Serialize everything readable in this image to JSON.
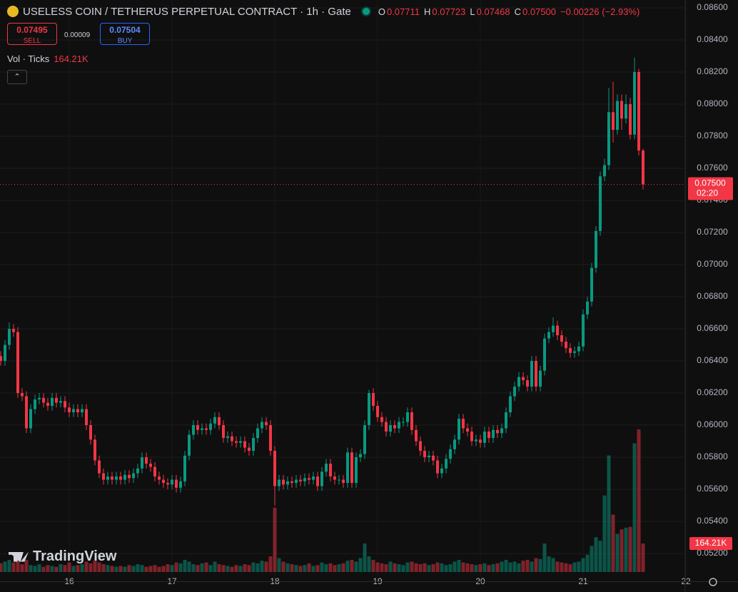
{
  "header": {
    "title": "USELESS COIN / TETHERUS PERPETUAL CONTRACT · 1h · Gate",
    "ohlc": [
      {
        "key": "O",
        "value": "0.07711"
      },
      {
        "key": "H",
        "value": "0.07723"
      },
      {
        "key": "L",
        "value": "0.07468"
      },
      {
        "key": "C",
        "value": "0.07500"
      }
    ],
    "change": "−0.00226 (−2.93%)",
    "sell": {
      "price": "0.07495",
      "label": "SELL"
    },
    "spread": "0.00009",
    "buy": {
      "price": "0.07504",
      "label": "BUY"
    },
    "volume": {
      "title": "Vol · Ticks",
      "value": "164.21K"
    },
    "watermark": "TradingView"
  },
  "chart_data": {
    "type": "candlestick",
    "up_color": "#089981",
    "down_color": "#f23645",
    "grid": true,
    "categories": [
      null,
      null,
      null,
      null,
      null,
      null,
      null,
      null,
      null,
      null,
      null,
      null,
      null,
      null,
      null,
      null,
      "16",
      null,
      null,
      null,
      null,
      null,
      null,
      null,
      null,
      null,
      null,
      null,
      null,
      null,
      null,
      null,
      null,
      null,
      null,
      null,
      null,
      null,
      null,
      null,
      "17",
      null,
      null,
      null,
      null,
      null,
      null,
      null,
      null,
      null,
      null,
      null,
      null,
      null,
      null,
      null,
      null,
      null,
      null,
      null,
      null,
      null,
      null,
      null,
      "18",
      null,
      null,
      null,
      null,
      null,
      null,
      null,
      null,
      null,
      null,
      null,
      null,
      null,
      null,
      null,
      null,
      null,
      null,
      null,
      null,
      null,
      null,
      null,
      "19",
      null,
      null,
      null,
      null,
      null,
      null,
      null,
      null,
      null,
      null,
      null,
      null,
      null,
      null,
      null,
      null,
      null,
      null,
      null,
      null,
      null,
      null,
      null,
      "20",
      null,
      null,
      null,
      null,
      null,
      null,
      null,
      null,
      null,
      null,
      null,
      null,
      null,
      null,
      null,
      null,
      null,
      null,
      null,
      null,
      null,
      null,
      null,
      "21",
      null,
      null,
      null,
      null,
      null,
      null,
      null,
      null,
      null,
      null,
      null,
      null,
      null,
      null,
      null,
      null,
      null,
      null,
      null,
      null,
      null,
      null,
      null,
      "22"
    ],
    "open": [
      0.0643,
      0.064,
      0.065,
      0.066,
      0.0658,
      0.062,
      0.0618,
      0.0598,
      0.061,
      0.0616,
      0.0617,
      0.0614,
      0.0612,
      0.0617,
      0.0614,
      0.0615,
      0.0611,
      0.0608,
      0.061,
      0.0608,
      0.061,
      0.06,
      0.0591,
      0.0578,
      0.057,
      0.0566,
      0.0568,
      0.0566,
      0.0568,
      0.0566,
      0.0569,
      0.0567,
      0.057,
      0.0573,
      0.058,
      0.0576,
      0.0574,
      0.0568,
      0.0566,
      0.0564,
      0.0563,
      0.0566,
      0.0561,
      0.0565,
      0.0581,
      0.0594,
      0.06,
      0.0597,
      0.0598,
      0.0597,
      0.0601,
      0.0605,
      0.06,
      0.0592,
      0.0593,
      0.059,
      0.0589,
      0.059,
      0.0586,
      0.0584,
      0.0592,
      0.0598,
      0.0602,
      0.06,
      0.0584,
      0.0562,
      0.0566,
      0.0563,
      0.0565,
      0.0564,
      0.0566,
      0.0565,
      0.0567,
      0.0566,
      0.0568,
      0.0562,
      0.0571,
      0.0576,
      0.0568,
      0.0566,
      0.0566,
      0.0564,
      0.0583,
      0.0564,
      0.058,
      0.0582,
      0.06,
      0.062,
      0.0612,
      0.0605,
      0.0602,
      0.0596,
      0.06,
      0.0598,
      0.0602,
      0.0602,
      0.0608,
      0.0597,
      0.059,
      0.0584,
      0.058,
      0.0581,
      0.0578,
      0.057,
      0.0573,
      0.0579,
      0.0585,
      0.0591,
      0.0604,
      0.0598,
      0.0596,
      0.059,
      0.0591,
      0.0589,
      0.0596,
      0.0592,
      0.0597,
      0.0595,
      0.0598,
      0.0608,
      0.0618,
      0.0624,
      0.063,
      0.0628,
      0.0624,
      0.064,
      0.0624,
      0.0634,
      0.0654,
      0.0658,
      0.0662,
      0.0656,
      0.0652,
      0.0648,
      0.0645,
      0.0646,
      0.0649,
      0.0669,
      0.0677,
      0.0698,
      0.0721,
      0.0755,
      0.0762,
      0.0795,
      0.0784,
      0.0802,
      0.0791,
      0.08,
      0.0781,
      0.082,
      0.07711,
      null,
      null,
      null,
      null,
      null,
      null,
      null,
      null,
      null,
      null
    ],
    "high": [
      0.0646,
      0.0653,
      0.0664,
      0.0663,
      0.0661,
      0.0623,
      0.0621,
      0.0613,
      0.0619,
      0.062,
      0.062,
      0.0617,
      0.062,
      0.062,
      0.0618,
      0.0618,
      0.0614,
      0.0613,
      0.0613,
      0.0613,
      0.0613,
      0.0603,
      0.0594,
      0.0581,
      0.0573,
      0.0571,
      0.0571,
      0.0571,
      0.0571,
      0.0572,
      0.0572,
      0.0573,
      0.0576,
      0.0583,
      0.0583,
      0.0579,
      0.0577,
      0.0571,
      0.0569,
      0.0567,
      0.0569,
      0.0569,
      0.0568,
      0.0584,
      0.0597,
      0.0603,
      0.0603,
      0.0601,
      0.0601,
      0.0604,
      0.0608,
      0.0608,
      0.0603,
      0.0596,
      0.0596,
      0.0593,
      0.0593,
      0.0593,
      0.0589,
      0.0595,
      0.0601,
      0.0605,
      0.0605,
      0.0603,
      0.0587,
      0.0569,
      0.0569,
      0.0568,
      0.0568,
      0.0569,
      0.0569,
      0.057,
      0.057,
      0.0571,
      0.0571,
      0.0574,
      0.0579,
      0.0579,
      0.0571,
      0.0569,
      0.0569,
      0.0586,
      0.0586,
      0.0583,
      0.0585,
      0.0603,
      0.0622,
      0.0623,
      0.0615,
      0.0608,
      0.0605,
      0.0603,
      0.0603,
      0.0605,
      0.0605,
      0.0611,
      0.0611,
      0.06,
      0.0593,
      0.0587,
      0.0584,
      0.0584,
      0.0581,
      0.0576,
      0.0582,
      0.0588,
      0.0594,
      0.0607,
      0.0607,
      0.0601,
      0.0599,
      0.0594,
      0.0594,
      0.0599,
      0.0599,
      0.06,
      0.06,
      0.0601,
      0.0611,
      0.0621,
      0.0627,
      0.0633,
      0.0633,
      0.0631,
      0.0643,
      0.0643,
      0.0637,
      0.0657,
      0.0661,
      0.0667,
      0.0665,
      0.0659,
      0.0655,
      0.0651,
      0.0649,
      0.0652,
      0.0672,
      0.068,
      0.0701,
      0.0724,
      0.0758,
      0.0766,
      0.081,
      0.0814,
      0.0806,
      0.0806,
      0.0806,
      0.0804,
      0.0829,
      0.0822,
      0.07723,
      null,
      null,
      null,
      null,
      null,
      null,
      null,
      null,
      null,
      null
    ],
    "low": [
      0.0637,
      0.0637,
      0.0647,
      0.0655,
      0.0617,
      0.0615,
      0.0595,
      0.0595,
      0.0607,
      0.0613,
      0.0611,
      0.0609,
      0.0609,
      0.0611,
      0.0611,
      0.0608,
      0.0605,
      0.0605,
      0.0605,
      0.0605,
      0.0597,
      0.0588,
      0.0575,
      0.0567,
      0.0563,
      0.0563,
      0.0563,
      0.0563,
      0.0563,
      0.0563,
      0.0564,
      0.0564,
      0.0567,
      0.057,
      0.0573,
      0.0571,
      0.0565,
      0.0563,
      0.0561,
      0.056,
      0.056,
      0.0558,
      0.0558,
      0.0562,
      0.0578,
      0.0591,
      0.0594,
      0.0594,
      0.0594,
      0.0594,
      0.0598,
      0.0597,
      0.0589,
      0.0589,
      0.0587,
      0.0586,
      0.0586,
      0.0583,
      0.0581,
      0.0581,
      0.0589,
      0.0595,
      0.0597,
      0.0581,
      0.055,
      0.0559,
      0.056,
      0.056,
      0.0561,
      0.0561,
      0.0562,
      0.0562,
      0.0563,
      0.0563,
      0.0559,
      0.0559,
      0.0568,
      0.0565,
      0.0563,
      0.0563,
      0.0561,
      0.0561,
      0.0561,
      0.0561,
      0.0577,
      0.0579,
      0.0597,
      0.0609,
      0.0602,
      0.0599,
      0.0593,
      0.0593,
      0.0595,
      0.0595,
      0.0599,
      0.0599,
      0.0594,
      0.0587,
      0.0581,
      0.0577,
      0.0577,
      0.0575,
      0.0567,
      0.0567,
      0.057,
      0.0576,
      0.0582,
      0.0588,
      0.0595,
      0.0593,
      0.0587,
      0.0587,
      0.0586,
      0.0586,
      0.0589,
      0.0589,
      0.0592,
      0.0592,
      0.0595,
      0.0605,
      0.0615,
      0.0621,
      0.0625,
      0.0621,
      0.0621,
      0.0621,
      0.0621,
      0.0631,
      0.0651,
      0.0655,
      0.0653,
      0.0649,
      0.0645,
      0.0642,
      0.0642,
      0.0643,
      0.0646,
      0.0666,
      0.0674,
      0.0695,
      0.0718,
      0.0752,
      0.0759,
      0.0776,
      0.0781,
      0.0784,
      0.0788,
      0.0778,
      0.0778,
      0.0768,
      0.07468,
      null,
      null,
      null,
      null,
      null,
      null,
      null,
      null,
      null,
      null
    ],
    "close": [
      0.064,
      0.065,
      0.066,
      0.0658,
      0.062,
      0.0618,
      0.0598,
      0.061,
      0.0616,
      0.0617,
      0.0614,
      0.0612,
      0.0617,
      0.0614,
      0.0615,
      0.0611,
      0.0608,
      0.061,
      0.0608,
      0.061,
      0.06,
      0.0591,
      0.0578,
      0.057,
      0.0566,
      0.0568,
      0.0566,
      0.0568,
      0.0566,
      0.0569,
      0.0567,
      0.057,
      0.0573,
      0.058,
      0.0576,
      0.0574,
      0.0568,
      0.0566,
      0.0564,
      0.0563,
      0.0566,
      0.0561,
      0.0565,
      0.0581,
      0.0594,
      0.06,
      0.0597,
      0.0598,
      0.0597,
      0.0601,
      0.0605,
      0.06,
      0.0592,
      0.0593,
      0.059,
      0.0589,
      0.059,
      0.0586,
      0.0584,
      0.0592,
      0.0598,
      0.0602,
      0.06,
      0.0584,
      0.0562,
      0.0566,
      0.0563,
      0.0565,
      0.0564,
      0.0566,
      0.0565,
      0.0567,
      0.0566,
      0.0568,
      0.0562,
      0.0571,
      0.0576,
      0.0568,
      0.0566,
      0.0566,
      0.0564,
      0.0583,
      0.0564,
      0.058,
      0.0582,
      0.06,
      0.062,
      0.0612,
      0.0605,
      0.0602,
      0.0596,
      0.06,
      0.0598,
      0.0602,
      0.0602,
      0.0608,
      0.0597,
      0.059,
      0.0584,
      0.058,
      0.0581,
      0.0578,
      0.057,
      0.0573,
      0.0579,
      0.0585,
      0.0591,
      0.0604,
      0.0598,
      0.0596,
      0.059,
      0.0591,
      0.0589,
      0.0596,
      0.0592,
      0.0597,
      0.0595,
      0.0598,
      0.0608,
      0.0618,
      0.0624,
      0.063,
      0.0628,
      0.0624,
      0.064,
      0.0624,
      0.0634,
      0.0654,
      0.0658,
      0.0662,
      0.0656,
      0.0652,
      0.0648,
      0.0645,
      0.0646,
      0.0649,
      0.0669,
      0.0677,
      0.0698,
      0.0721,
      0.0755,
      0.0762,
      0.0795,
      0.0784,
      0.0802,
      0.0791,
      0.08,
      0.0781,
      0.082,
      0.07711,
      0.075,
      null,
      null,
      null,
      null,
      null,
      null,
      null,
      null,
      null,
      null
    ],
    "volume": [
      50000,
      60000,
      70000,
      55000,
      80000,
      45000,
      70000,
      40000,
      35000,
      45000,
      30000,
      40000,
      35000,
      30000,
      45000,
      40000,
      55000,
      35000,
      40000,
      45000,
      60000,
      50000,
      65000,
      55000,
      45000,
      40000,
      35000,
      30000,
      35000,
      30000,
      40000,
      35000,
      45000,
      40000,
      30000,
      35000,
      40000,
      30000,
      35000,
      45000,
      40000,
      55000,
      50000,
      70000,
      60000,
      45000,
      40000,
      50000,
      55000,
      40000,
      60000,
      45000,
      40000,
      35000,
      30000,
      40000,
      35000,
      45000,
      40000,
      55000,
      50000,
      65000,
      60000,
      90000,
      370000,
      80000,
      60000,
      50000,
      45000,
      40000,
      35000,
      40000,
      50000,
      35000,
      40000,
      55000,
      45000,
      50000,
      40000,
      45000,
      50000,
      65000,
      70000,
      60000,
      80000,
      164000,
      90000,
      70000,
      55000,
      50000,
      45000,
      60000,
      50000,
      45000,
      40000,
      55000,
      60000,
      50000,
      45000,
      50000,
      40000,
      45000,
      55000,
      50000,
      40000,
      45000,
      60000,
      70000,
      55000,
      50000,
      45000,
      40000,
      45000,
      50000,
      40000,
      45000,
      50000,
      60000,
      70000,
      55000,
      60000,
      50000,
      65000,
      70000,
      60000,
      80000,
      75000,
      164000,
      90000,
      80000,
      60000,
      55000,
      50000,
      45000,
      55000,
      60000,
      80000,
      100000,
      150000,
      200000,
      180000,
      440000,
      670000,
      330000,
      220000,
      245000,
      255000,
      260000,
      740000,
      820000,
      164210,
      null,
      null,
      null,
      null,
      null,
      null,
      null,
      null,
      null,
      null
    ],
    "ylim": [
      0.05027,
      0.08649
    ],
    "yticks": [
      {
        "value": 0.086,
        "label": "0.08600"
      },
      {
        "value": 0.084,
        "label": "0.08400"
      },
      {
        "value": 0.082,
        "label": "0.08200"
      },
      {
        "value": 0.08,
        "label": "0.08000"
      },
      {
        "value": 0.078,
        "label": "0.07800"
      },
      {
        "value": 0.076,
        "label": "0.07600"
      },
      {
        "value": 0.074,
        "label": "0.07400"
      },
      {
        "value": 0.072,
        "label": "0.07200"
      },
      {
        "value": 0.07,
        "label": "0.07000"
      },
      {
        "value": 0.068,
        "label": "0.06800"
      },
      {
        "value": 0.066,
        "label": "0.06600"
      },
      {
        "value": 0.064,
        "label": "0.06400"
      },
      {
        "value": 0.062,
        "label": "0.06200"
      },
      {
        "value": 0.06,
        "label": "0.06000"
      },
      {
        "value": 0.058,
        "label": "0.05800"
      },
      {
        "value": 0.056,
        "label": "0.05600"
      },
      {
        "value": 0.054,
        "label": "0.05400"
      },
      {
        "value": 0.052,
        "label": "0.05200"
      }
    ],
    "last_price": {
      "value": 0.075,
      "label": "0.07500"
    },
    "countdown": "02:20",
    "last_volume": {
      "value": 164210,
      "label": "164.21K"
    }
  }
}
